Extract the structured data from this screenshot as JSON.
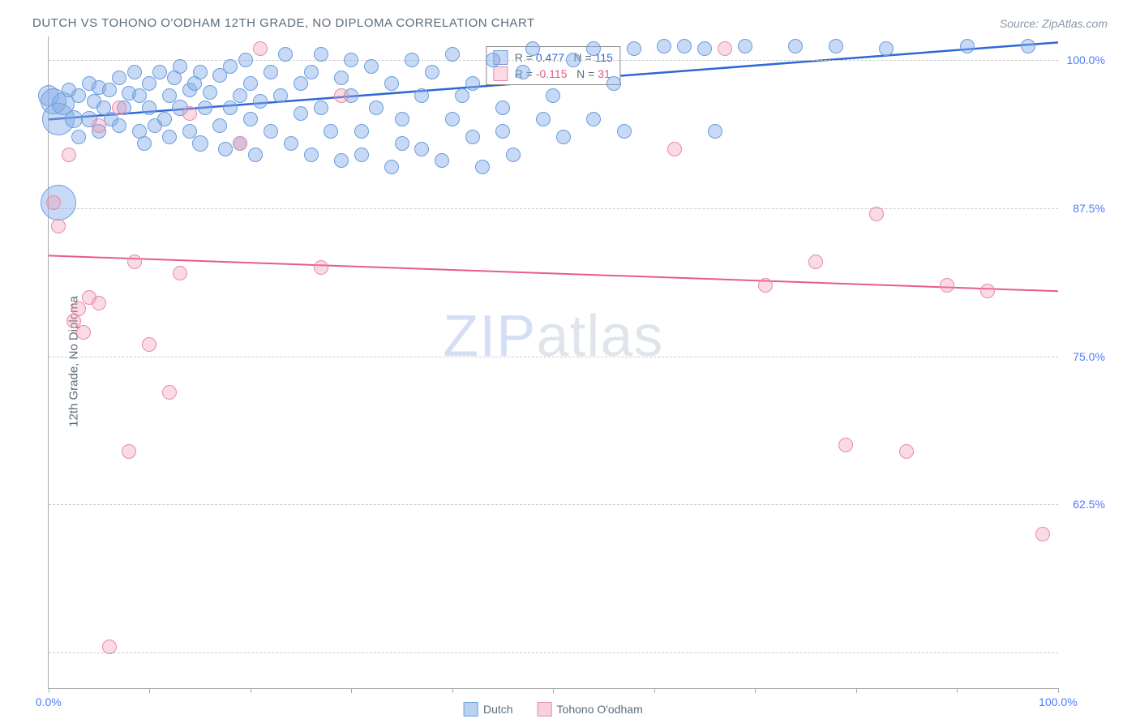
{
  "title": "DUTCH VS TOHONO O'ODHAM 12TH GRADE, NO DIPLOMA CORRELATION CHART",
  "source": "Source: ZipAtlas.com",
  "ylabel": "12th Grade, No Diploma",
  "watermark_zip": "ZIP",
  "watermark_atlas": "atlas",
  "chart": {
    "type": "scatter",
    "xlim": [
      0,
      100
    ],
    "ylim": [
      47,
      102
    ],
    "x_ticks": [
      0,
      10,
      20,
      30,
      40,
      50,
      60,
      70,
      80,
      90,
      100
    ],
    "x_tick_labels": {
      "0": "0.0%",
      "100": "100.0%"
    },
    "y_gridlines": [
      50,
      62.5,
      75,
      87.5,
      100
    ],
    "y_tick_labels": {
      "62.5": "62.5%",
      "75": "75.0%",
      "87.5": "87.5%",
      "100": "100.0%"
    },
    "background_color": "#ffffff",
    "grid_color": "#cccccc",
    "border_color": "#aaaaaa",
    "series": [
      {
        "name": "Dutch",
        "color_fill": "rgba(130,170,230,0.45)",
        "color_stroke": "#6a9de0",
        "R": "0.477",
        "N": "115",
        "trend": {
          "y_at_x0": 95.0,
          "y_at_x100": 101.5,
          "color": "#2f68d6",
          "width": 2.5
        },
        "points": [
          {
            "x": 0,
            "y": 97,
            "r": 13
          },
          {
            "x": 0.5,
            "y": 96.5,
            "r": 16
          },
          {
            "x": 1,
            "y": 95,
            "r": 20
          },
          {
            "x": 1,
            "y": 88,
            "r": 22
          },
          {
            "x": 1.5,
            "y": 96.3,
            "r": 14
          },
          {
            "x": 2,
            "y": 97.5,
            "r": 9
          },
          {
            "x": 2.5,
            "y": 95,
            "r": 11
          },
          {
            "x": 3,
            "y": 97,
            "r": 9
          },
          {
            "x": 3,
            "y": 93.5,
            "r": 9
          },
          {
            "x": 4,
            "y": 98,
            "r": 9
          },
          {
            "x": 4,
            "y": 95,
            "r": 10
          },
          {
            "x": 4.5,
            "y": 96.5,
            "r": 9
          },
          {
            "x": 5,
            "y": 94,
            "r": 9
          },
          {
            "x": 5,
            "y": 97.7,
            "r": 9
          },
          {
            "x": 5.5,
            "y": 96,
            "r": 9
          },
          {
            "x": 6,
            "y": 97.5,
            "r": 9
          },
          {
            "x": 6.2,
            "y": 95,
            "r": 9
          },
          {
            "x": 7,
            "y": 98.5,
            "r": 9
          },
          {
            "x": 7,
            "y": 94.5,
            "r": 9
          },
          {
            "x": 7.5,
            "y": 96,
            "r": 9
          },
          {
            "x": 8,
            "y": 97.2,
            "r": 9
          },
          {
            "x": 8.5,
            "y": 99,
            "r": 9
          },
          {
            "x": 9,
            "y": 94,
            "r": 9
          },
          {
            "x": 9,
            "y": 97,
            "r": 9
          },
          {
            "x": 9.5,
            "y": 93,
            "r": 9
          },
          {
            "x": 10,
            "y": 98,
            "r": 9
          },
          {
            "x": 10,
            "y": 96,
            "r": 9
          },
          {
            "x": 10.5,
            "y": 94.5,
            "r": 9
          },
          {
            "x": 11,
            "y": 99,
            "r": 9
          },
          {
            "x": 11.5,
            "y": 95,
            "r": 9
          },
          {
            "x": 12,
            "y": 97,
            "r": 9
          },
          {
            "x": 12,
            "y": 93.5,
            "r": 9
          },
          {
            "x": 12.5,
            "y": 98.5,
            "r": 9
          },
          {
            "x": 13,
            "y": 96,
            "r": 10
          },
          {
            "x": 13,
            "y": 99.5,
            "r": 9
          },
          {
            "x": 14,
            "y": 97.5,
            "r": 9
          },
          {
            "x": 14,
            "y": 94,
            "r": 9
          },
          {
            "x": 14.5,
            "y": 98,
            "r": 9
          },
          {
            "x": 15,
            "y": 93,
            "r": 10
          },
          {
            "x": 15,
            "y": 99,
            "r": 9
          },
          {
            "x": 15.5,
            "y": 96,
            "r": 9
          },
          {
            "x": 16,
            "y": 97.3,
            "r": 9
          },
          {
            "x": 17,
            "y": 94.5,
            "r": 9
          },
          {
            "x": 17,
            "y": 98.7,
            "r": 9
          },
          {
            "x": 17.5,
            "y": 92.5,
            "r": 9
          },
          {
            "x": 18,
            "y": 99.5,
            "r": 9
          },
          {
            "x": 18,
            "y": 96,
            "r": 9
          },
          {
            "x": 19,
            "y": 97,
            "r": 9
          },
          {
            "x": 19,
            "y": 93,
            "r": 9
          },
          {
            "x": 19.5,
            "y": 100,
            "r": 9
          },
          {
            "x": 20,
            "y": 98,
            "r": 9
          },
          {
            "x": 20,
            "y": 95,
            "r": 9
          },
          {
            "x": 20.5,
            "y": 92,
            "r": 9
          },
          {
            "x": 21,
            "y": 96.5,
            "r": 9
          },
          {
            "x": 22,
            "y": 99,
            "r": 9
          },
          {
            "x": 22,
            "y": 94,
            "r": 9
          },
          {
            "x": 23,
            "y": 97,
            "r": 9
          },
          {
            "x": 23.5,
            "y": 100.5,
            "r": 9
          },
          {
            "x": 24,
            "y": 93,
            "r": 9
          },
          {
            "x": 25,
            "y": 98,
            "r": 9
          },
          {
            "x": 25,
            "y": 95.5,
            "r": 9
          },
          {
            "x": 26,
            "y": 99,
            "r": 9
          },
          {
            "x": 26,
            "y": 92,
            "r": 9
          },
          {
            "x": 27,
            "y": 96,
            "r": 9
          },
          {
            "x": 27,
            "y": 100.5,
            "r": 9
          },
          {
            "x": 28,
            "y": 94,
            "r": 9
          },
          {
            "x": 29,
            "y": 98.5,
            "r": 9
          },
          {
            "x": 29,
            "y": 91.5,
            "r": 9
          },
          {
            "x": 30,
            "y": 97,
            "r": 9
          },
          {
            "x": 30,
            "y": 100,
            "r": 9
          },
          {
            "x": 31,
            "y": 94,
            "r": 9
          },
          {
            "x": 31,
            "y": 92,
            "r": 9
          },
          {
            "x": 32,
            "y": 99.5,
            "r": 9
          },
          {
            "x": 32.5,
            "y": 96,
            "r": 9
          },
          {
            "x": 34,
            "y": 98,
            "r": 9
          },
          {
            "x": 34,
            "y": 91,
            "r": 9
          },
          {
            "x": 35,
            "y": 95,
            "r": 9
          },
          {
            "x": 35,
            "y": 93,
            "r": 9
          },
          {
            "x": 36,
            "y": 100,
            "r": 9
          },
          {
            "x": 37,
            "y": 97,
            "r": 9
          },
          {
            "x": 37,
            "y": 92.5,
            "r": 9
          },
          {
            "x": 38,
            "y": 99,
            "r": 9
          },
          {
            "x": 39,
            "y": 91.5,
            "r": 9
          },
          {
            "x": 40,
            "y": 95,
            "r": 9
          },
          {
            "x": 40,
            "y": 100.5,
            "r": 9
          },
          {
            "x": 41,
            "y": 97,
            "r": 9
          },
          {
            "x": 42,
            "y": 93.5,
            "r": 9
          },
          {
            "x": 42,
            "y": 98,
            "r": 9
          },
          {
            "x": 43,
            "y": 91,
            "r": 9
          },
          {
            "x": 44,
            "y": 100,
            "r": 9
          },
          {
            "x": 45,
            "y": 96,
            "r": 9
          },
          {
            "x": 45,
            "y": 94,
            "r": 9
          },
          {
            "x": 46,
            "y": 92,
            "r": 9
          },
          {
            "x": 47,
            "y": 99,
            "r": 9
          },
          {
            "x": 48,
            "y": 101,
            "r": 9
          },
          {
            "x": 49,
            "y": 95,
            "r": 9
          },
          {
            "x": 50,
            "y": 97,
            "r": 9
          },
          {
            "x": 51,
            "y": 93.5,
            "r": 9
          },
          {
            "x": 52,
            "y": 100,
            "r": 9
          },
          {
            "x": 54,
            "y": 95,
            "r": 9
          },
          {
            "x": 54,
            "y": 101,
            "r": 9
          },
          {
            "x": 56,
            "y": 98,
            "r": 9
          },
          {
            "x": 57,
            "y": 94,
            "r": 9
          },
          {
            "x": 58,
            "y": 101,
            "r": 9
          },
          {
            "x": 61,
            "y": 101.2,
            "r": 9
          },
          {
            "x": 63,
            "y": 101.2,
            "r": 9
          },
          {
            "x": 65,
            "y": 101,
            "r": 9
          },
          {
            "x": 66,
            "y": 94,
            "r": 9
          },
          {
            "x": 69,
            "y": 101.2,
            "r": 9
          },
          {
            "x": 74,
            "y": 101.2,
            "r": 9
          },
          {
            "x": 78,
            "y": 101.2,
            "r": 9
          },
          {
            "x": 83,
            "y": 101,
            "r": 9
          },
          {
            "x": 91,
            "y": 101.2,
            "r": 9
          },
          {
            "x": 97,
            "y": 101.2,
            "r": 9
          }
        ]
      },
      {
        "name": "Tohono O'odham",
        "color_fill": "rgba(240,150,175,0.35)",
        "color_stroke": "#e88ba5",
        "R": "-0.115",
        "N": "31",
        "trend": {
          "y_at_x0": 83.5,
          "y_at_x100": 80.5,
          "color": "#e85a8c",
          "width": 2
        },
        "points": [
          {
            "x": 0.5,
            "y": 88,
            "r": 9
          },
          {
            "x": 1,
            "y": 86,
            "r": 9
          },
          {
            "x": 2,
            "y": 92,
            "r": 9
          },
          {
            "x": 2.5,
            "y": 78,
            "r": 9
          },
          {
            "x": 3,
            "y": 79,
            "r": 9
          },
          {
            "x": 3.5,
            "y": 77,
            "r": 9
          },
          {
            "x": 4,
            "y": 80,
            "r": 9
          },
          {
            "x": 5,
            "y": 94.5,
            "r": 9
          },
          {
            "x": 5,
            "y": 79.5,
            "r": 9
          },
          {
            "x": 6,
            "y": 50.5,
            "r": 9
          },
          {
            "x": 7,
            "y": 96,
            "r": 9
          },
          {
            "x": 8,
            "y": 67,
            "r": 9
          },
          {
            "x": 8.5,
            "y": 83,
            "r": 9
          },
          {
            "x": 10,
            "y": 76,
            "r": 9
          },
          {
            "x": 12,
            "y": 72,
            "r": 9
          },
          {
            "x": 13,
            "y": 82,
            "r": 9
          },
          {
            "x": 14,
            "y": 95.5,
            "r": 9
          },
          {
            "x": 19,
            "y": 93,
            "r": 9
          },
          {
            "x": 21,
            "y": 101,
            "r": 9
          },
          {
            "x": 27,
            "y": 82.5,
            "r": 9
          },
          {
            "x": 29,
            "y": 97,
            "r": 9
          },
          {
            "x": 62,
            "y": 92.5,
            "r": 9
          },
          {
            "x": 67,
            "y": 101,
            "r": 9
          },
          {
            "x": 71,
            "y": 81,
            "r": 9
          },
          {
            "x": 76,
            "y": 83,
            "r": 9
          },
          {
            "x": 79,
            "y": 67.5,
            "r": 9
          },
          {
            "x": 82,
            "y": 87,
            "r": 9
          },
          {
            "x": 85,
            "y": 67,
            "r": 9
          },
          {
            "x": 89,
            "y": 81,
            "r": 9
          },
          {
            "x": 93,
            "y": 80.5,
            "r": 9
          },
          {
            "x": 98.5,
            "y": 60,
            "r": 9
          }
        ]
      }
    ],
    "legend_bottom": [
      {
        "label": "Dutch",
        "fill": "rgba(130,170,230,0.55)",
        "stroke": "#6a9de0"
      },
      {
        "label": "Tohono O'odham",
        "fill": "rgba(240,150,175,0.45)",
        "stroke": "#e88ba5"
      }
    ],
    "colors": {
      "label_text": "#5a6b7b",
      "value_text": "#4a7cff",
      "pink_text": "#e85a8c"
    }
  }
}
